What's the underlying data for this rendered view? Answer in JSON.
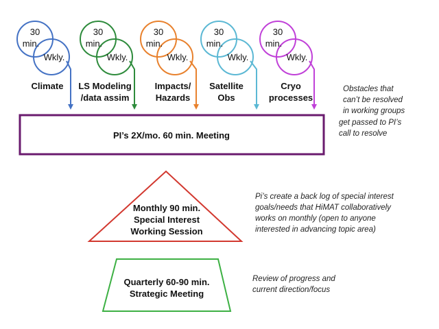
{
  "working_groups": [
    {
      "freq_top": "30",
      "freq_top2": "min.",
      "freq_bottom": "Wkly.",
      "label_lines": [
        "Climate"
      ],
      "color": "#4472c4"
    },
    {
      "freq_top": "30",
      "freq_top2": "min.",
      "freq_bottom": "Wkly.",
      "label_lines": [
        "LS Modeling",
        "/data assim"
      ],
      "color": "#2e8b3c"
    },
    {
      "freq_top": "30",
      "freq_top2": "min.",
      "freq_bottom": "Wkly.",
      "label_lines": [
        "Impacts/",
        "Hazards"
      ],
      "color": "#e8812d"
    },
    {
      "freq_top": "30",
      "freq_top2": "min.",
      "freq_bottom": "Wkly.",
      "label_lines": [
        "Satellite",
        "Obs"
      ],
      "color": "#5bb8d4"
    },
    {
      "freq_top": "30",
      "freq_top2": "min.",
      "freq_bottom": "Wkly.",
      "label_lines": [
        "Cryo",
        "processes"
      ],
      "color": "#c040d8"
    }
  ],
  "pi_meeting": {
    "label": "PI’s 2X/mo. 60 min. Meeting",
    "color": "#6a1b6e"
  },
  "special_interest": {
    "label_lines": [
      "Monthly 90 min.",
      "Special Interest",
      "Working Session"
    ],
    "color": "#d2382f"
  },
  "strategic": {
    "label_lines": [
      "Quarterly 60-90 min.",
      "Strategic Meeting"
    ],
    "color": "#3cb043"
  },
  "notes": {
    "obstacles": [
      "Obstacles that",
      "can’t be resolved",
      "in working groups",
      "get passed to PI’s",
      "call to resolve"
    ],
    "backlog": [
      "Pi’s create a back log of special interest",
      "goals/needs that HiMAT collaboratively",
      "works on monthly (open to anyone",
      "interested in advancing topic area)"
    ],
    "review": [
      "Review of progress and",
      "current direction/focus"
    ]
  }
}
